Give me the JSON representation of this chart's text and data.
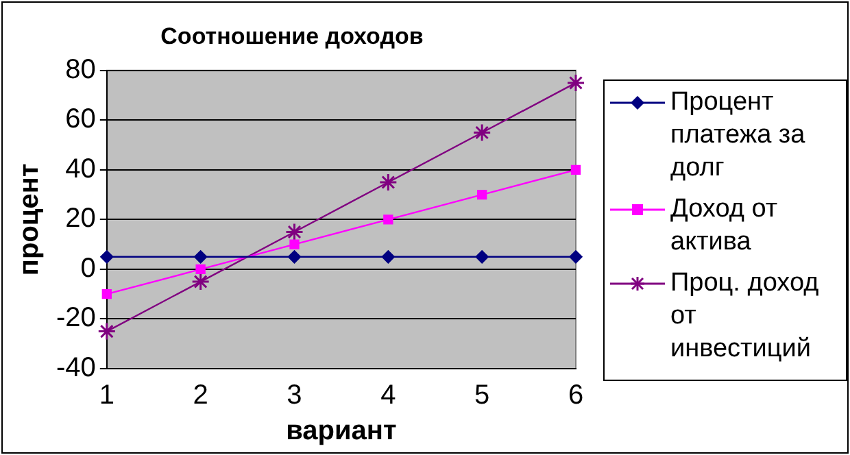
{
  "chart_data": {
    "type": "line",
    "title": "Соотношение доходов",
    "xlabel": "вариант",
    "ylabel": "процент",
    "categories": [
      "1",
      "2",
      "3",
      "4",
      "5",
      "6"
    ],
    "series": [
      {
        "name": "Процент платежа за долг",
        "color": "#000080",
        "marker": "diamond",
        "values": [
          5,
          5,
          5,
          5,
          5,
          5
        ]
      },
      {
        "name": "Доход от актива",
        "color": "#ff00ff",
        "marker": "square",
        "values": [
          -10,
          0,
          10,
          20,
          30,
          40
        ]
      },
      {
        "name": "Проц. доход от инвестиций",
        "color": "#800080",
        "marker": "cross",
        "values": [
          -25,
          -5,
          15,
          35,
          55,
          75
        ]
      }
    ],
    "ylim": [
      -40,
      80
    ],
    "yticks": [
      -40,
      -20,
      0,
      20,
      40,
      60,
      80
    ],
    "grid": "y",
    "legend": "right"
  }
}
